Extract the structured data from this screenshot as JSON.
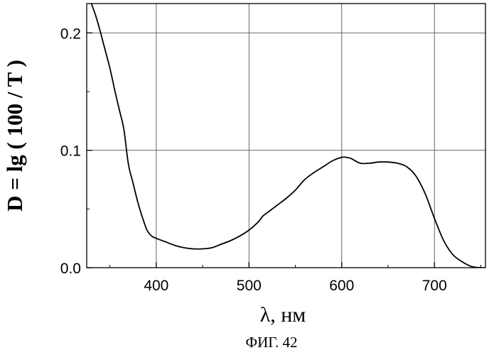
{
  "chart_data": {
    "type": "line",
    "title": "",
    "xlabel": "λ, нм",
    "ylabel": "D = lg ( 100 / T )",
    "caption": "ФИГ. 42",
    "xlim": [
      325,
      755
    ],
    "ylim": [
      0,
      0.225
    ],
    "x_ticks": [
      400,
      500,
      600,
      700
    ],
    "y_ticks": [
      0.0,
      0.1,
      0.2
    ],
    "y_tick_labels": [
      "0.0",
      "0.1",
      "0.2"
    ],
    "grid": true,
    "legend": "none",
    "line_color": "#000000",
    "series": [
      {
        "x": [
          330,
          335,
          340,
          345,
          350,
          355,
          360,
          365,
          370,
          375,
          380,
          385,
          390,
          395,
          400,
          410,
          420,
          430,
          440,
          450,
          460,
          470,
          480,
          490,
          500,
          510,
          515,
          520,
          530,
          540,
          550,
          560,
          570,
          580,
          590,
          600,
          605,
          610,
          620,
          630,
          640,
          650,
          660,
          670,
          680,
          690,
          700,
          710,
          720,
          730,
          740,
          750,
          755
        ],
        "y": [
          0.225,
          0.214,
          0.2,
          0.185,
          0.17,
          0.152,
          0.135,
          0.118,
          0.088,
          0.072,
          0.056,
          0.043,
          0.032,
          0.027,
          0.025,
          0.022,
          0.019,
          0.017,
          0.016,
          0.016,
          0.017,
          0.02,
          0.023,
          0.027,
          0.032,
          0.039,
          0.044,
          0.047,
          0.053,
          0.059,
          0.066,
          0.075,
          0.081,
          0.086,
          0.091,
          0.094,
          0.094,
          0.093,
          0.089,
          0.089,
          0.09,
          0.09,
          0.089,
          0.086,
          0.078,
          0.063,
          0.042,
          0.023,
          0.011,
          0.005,
          0.001,
          0.0,
          0.0
        ]
      }
    ]
  }
}
